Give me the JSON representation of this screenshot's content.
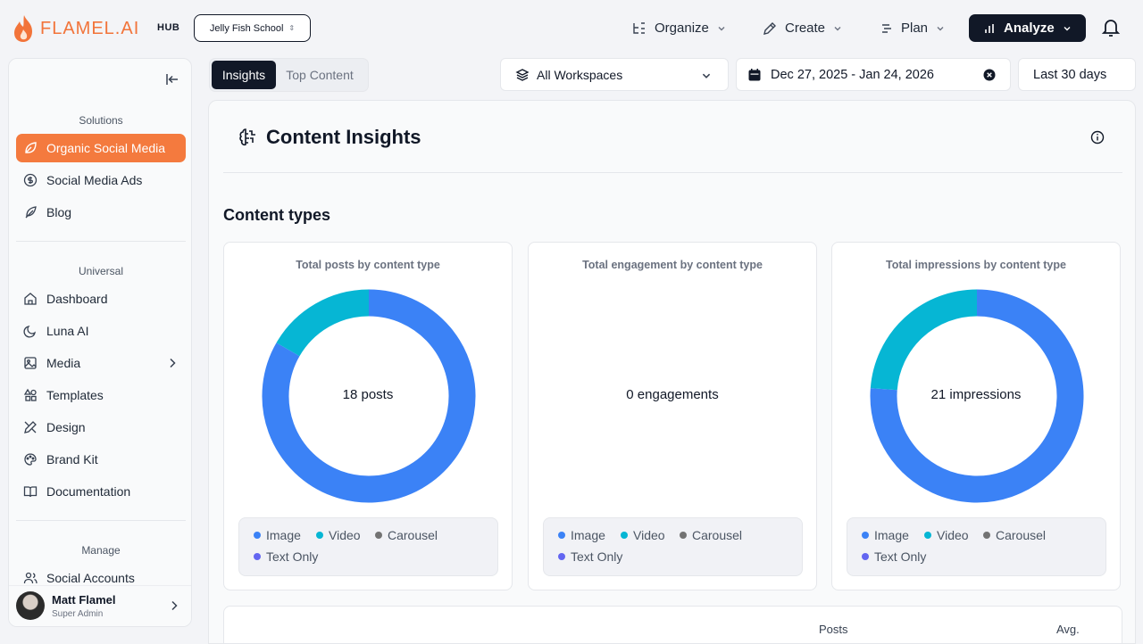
{
  "header": {
    "logo_text": "FLAMEL.AI",
    "hub_label": "HUB",
    "school_selector": "Jelly Fish School",
    "nav": [
      {
        "label": "Organize",
        "icon": "organize-icon"
      },
      {
        "label": "Create",
        "icon": "pencil-icon"
      },
      {
        "label": "Plan",
        "icon": "plan-icon"
      },
      {
        "label": "Analyze",
        "icon": "bar-chart-icon"
      }
    ]
  },
  "sidebar": {
    "solutions_title": "Solutions",
    "solutions": [
      {
        "label": "Organic Social Media",
        "icon": "leaf-icon"
      },
      {
        "label": "Social Media Ads",
        "icon": "dollar-icon"
      },
      {
        "label": "Blog",
        "icon": "feather-icon"
      }
    ],
    "universal_title": "Universal",
    "universal": [
      {
        "label": "Dashboard",
        "icon": "home-icon"
      },
      {
        "label": "Luna AI",
        "icon": "moon-icon"
      },
      {
        "label": "Media",
        "icon": "image-icon"
      },
      {
        "label": "Templates",
        "icon": "shapes-icon"
      },
      {
        "label": "Design",
        "icon": "design-icon"
      },
      {
        "label": "Brand Kit",
        "icon": "palette-icon"
      },
      {
        "label": "Documentation",
        "icon": "book-icon"
      }
    ],
    "manage_title": "Manage",
    "manage": [
      {
        "label": "Social Accounts",
        "icon": "users-icon"
      }
    ],
    "user": {
      "name": "Matt Flamel",
      "role": "Super Admin"
    }
  },
  "filters": {
    "tabs": [
      "Insights",
      "Top Content"
    ],
    "workspace": "All Workspaces",
    "date_range": "Dec 27, 2025 - Jan 24, 2026",
    "period": "Last 30 days"
  },
  "main": {
    "title": "Content Insights",
    "section_title": "Content types",
    "legend": [
      "Image",
      "Video",
      "Carousel",
      "Text Only"
    ],
    "legend_colors": [
      "#3b82f6",
      "#06b6d4",
      "#737373",
      "#6366f1"
    ],
    "cards": [
      {
        "title": "Total posts by content type",
        "center": "18 posts"
      },
      {
        "title": "Total engagement by content type",
        "center": "0 engagements"
      },
      {
        "title": "Total impressions by content type",
        "center": "21 impressions"
      }
    ],
    "table_columns": [
      "Posts",
      "Avg."
    ]
  },
  "chart_data": [
    {
      "type": "pie",
      "title": "Total posts by content type",
      "categories": [
        "Image",
        "Video",
        "Carousel",
        "Text Only"
      ],
      "values": [
        15,
        3,
        0,
        0
      ],
      "center_label": "18 posts"
    },
    {
      "type": "pie",
      "title": "Total engagement by content type",
      "categories": [
        "Image",
        "Video",
        "Carousel",
        "Text Only"
      ],
      "values": [
        0,
        0,
        0,
        0
      ],
      "center_label": "0 engagements"
    },
    {
      "type": "pie",
      "title": "Total impressions by content type",
      "categories": [
        "Image",
        "Video",
        "Carousel",
        "Text Only"
      ],
      "values": [
        16,
        5,
        0,
        0
      ],
      "center_label": "21 impressions"
    }
  ]
}
